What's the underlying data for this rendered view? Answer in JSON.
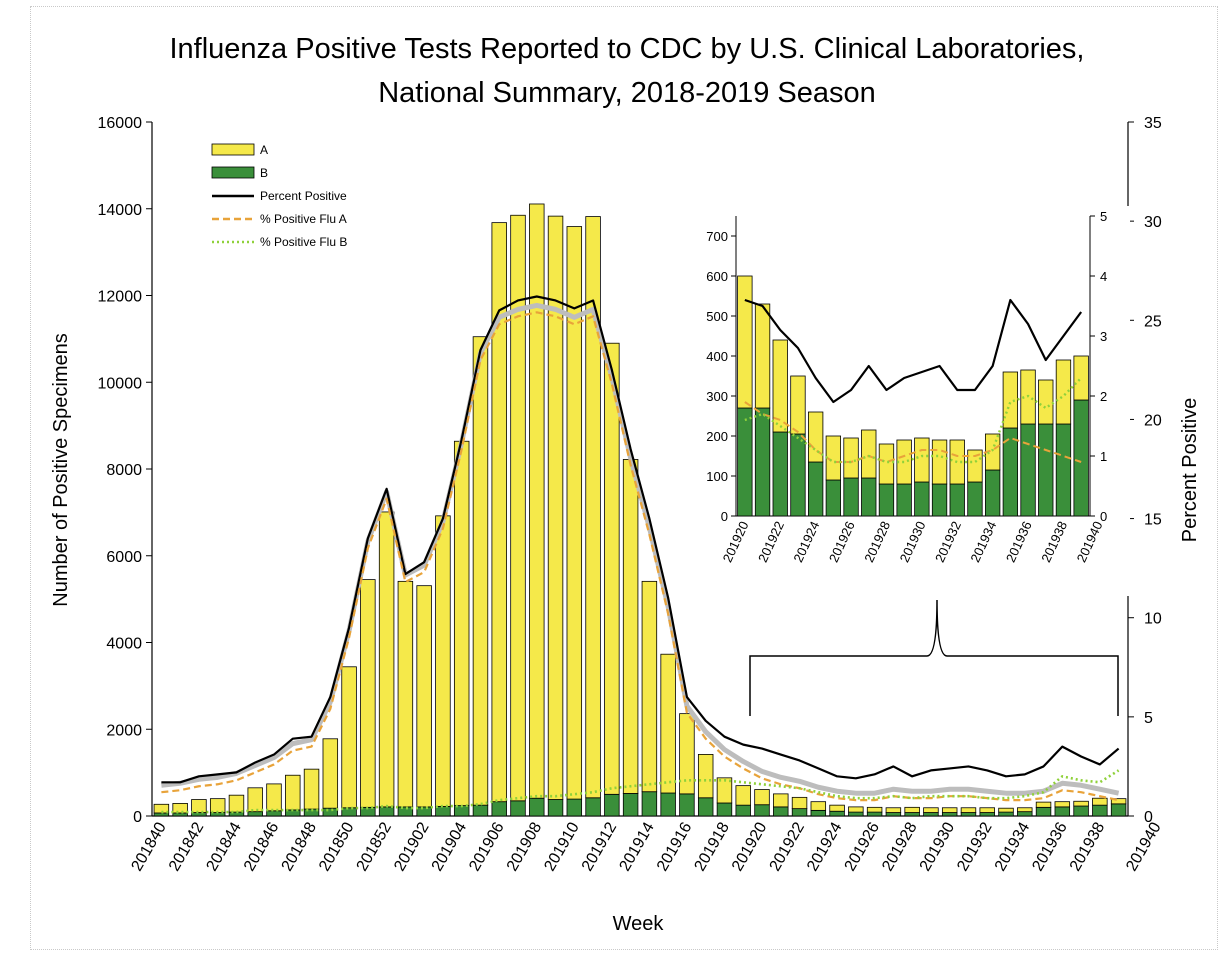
{
  "chart_data": {
    "type": "bar",
    "title_line1": "Influenza Positive Tests Reported to CDC by U.S. Clinical Laboratories,",
    "title_line2": "National Summary, 2018-2019 Season",
    "xlabel": "Week",
    "ylabel": "Number of Positive Specimens",
    "y2label": "Percent Positive",
    "ylim": [
      0,
      16000
    ],
    "y2lim": [
      0,
      35
    ],
    "yticks": [
      "0",
      "2000",
      "4000",
      "6000",
      "8000",
      "10000",
      "12000",
      "14000",
      "16000"
    ],
    "y2ticks": [
      "0",
      "5",
      "10",
      "15",
      "20",
      "25",
      "30",
      "35"
    ],
    "stacked": true,
    "weeks": [
      "201840",
      "201841",
      "201842",
      "201843",
      "201844",
      "201845",
      "201846",
      "201847",
      "201848",
      "201849",
      "201850",
      "201851",
      "201852",
      "201901",
      "201902",
      "201903",
      "201904",
      "201905",
      "201906",
      "201907",
      "201908",
      "201909",
      "201910",
      "201911",
      "201912",
      "201913",
      "201914",
      "201915",
      "201916",
      "201917",
      "201918",
      "201919",
      "201920",
      "201921",
      "201922",
      "201923",
      "201924",
      "201925",
      "201926",
      "201927",
      "201928",
      "201929",
      "201930",
      "201931",
      "201932",
      "201933",
      "201934",
      "201935",
      "201936",
      "201937",
      "201938",
      "201939"
    ],
    "x_tick_labels": [
      "201840",
      "201842",
      "201844",
      "201846",
      "201848",
      "201850",
      "201852",
      "201902",
      "201904",
      "201906",
      "201908",
      "201910",
      "201912",
      "201914",
      "201916",
      "201918",
      "201920",
      "201922",
      "201924",
      "201926",
      "201928",
      "201930",
      "201932",
      "201934",
      "201936",
      "201938",
      "201940"
    ],
    "legend": [
      {
        "label": "A",
        "kind": "bar",
        "color": "#f5e94a"
      },
      {
        "label": "B",
        "kind": "bar",
        "color": "#3a8f3a"
      },
      {
        "label": "Percent Positive",
        "kind": "line",
        "color": "#000000"
      },
      {
        "label": "% Positive Flu A",
        "kind": "dash",
        "color": "#e8a33a"
      },
      {
        "label": "% Positive Flu B",
        "kind": "dot",
        "color": "#8fd13a"
      }
    ],
    "legend_placement": "top-left",
    "series": [
      {
        "name": "A",
        "axis": "left",
        "values": [
          200,
          220,
          300,
          320,
          390,
          550,
          620,
          800,
          920,
          1600,
          3250,
          5250,
          6800,
          5200,
          5100,
          6700,
          8400,
          10800,
          13350,
          13500,
          13700,
          13450,
          13200,
          13400,
          10400,
          7700,
          4850,
          3200,
          1850,
          1000,
          580,
          450,
          350,
          300,
          260,
          200,
          140,
          120,
          110,
          110,
          120,
          110,
          110,
          110,
          110,
          90,
          90,
          120,
          120,
          110,
          160,
          120
        ]
      },
      {
        "name": "B",
        "axis": "left",
        "values": [
          70,
          70,
          80,
          80,
          90,
          100,
          120,
          140,
          160,
          180,
          190,
          200,
          210,
          210,
          210,
          220,
          240,
          250,
          330,
          350,
          410,
          380,
          390,
          420,
          500,
          520,
          560,
          530,
          510,
          420,
          300,
          250,
          260,
          210,
          170,
          130,
          110,
          90,
          90,
          80,
          80,
          80,
          80,
          80,
          80,
          90,
          100,
          200,
          210,
          230,
          250,
          280
        ]
      },
      {
        "name": "Percent Positive",
        "axis": "right",
        "values": [
          1.7,
          1.7,
          2.0,
          2.1,
          2.2,
          2.7,
          3.1,
          3.9,
          4.0,
          6.0,
          9.5,
          14.0,
          16.5,
          12.2,
          12.8,
          15.0,
          19.0,
          23.5,
          25.5,
          26.0,
          26.2,
          26.0,
          25.6,
          26.0,
          22.5,
          18.5,
          15.0,
          11.0,
          6.0,
          4.8,
          4.0,
          3.6,
          3.4,
          3.1,
          2.8,
          2.4,
          2.0,
          1.9,
          2.1,
          2.5,
          2.0,
          2.3,
          2.4,
          2.5,
          2.3,
          2.0,
          2.1,
          2.5,
          3.5,
          3.0,
          2.6,
          3.4
        ]
      },
      {
        "name": "% Positive Flu A",
        "axis": "right",
        "values": [
          1.2,
          1.3,
          1.5,
          1.6,
          1.8,
          2.2,
          2.6,
          3.3,
          3.5,
          5.4,
          9.0,
          13.5,
          16.0,
          11.8,
          12.3,
          14.5,
          18.5,
          23.0,
          24.8,
          25.2,
          25.4,
          25.2,
          24.8,
          25.2,
          21.8,
          17.7,
          14.2,
          10.2,
          5.2,
          3.9,
          3.0,
          2.4,
          1.9,
          1.6,
          1.4,
          1.1,
          0.9,
          0.8,
          0.8,
          1.0,
          0.9,
          0.9,
          1.0,
          1.0,
          0.9,
          0.8,
          0.8,
          0.9,
          1.3,
          1.2,
          1.0,
          0.8
        ]
      },
      {
        "name": "% Positive Flu B",
        "axis": "right",
        "values": [
          0.2,
          0.2,
          0.2,
          0.2,
          0.2,
          0.3,
          0.3,
          0.3,
          0.3,
          0.3,
          0.4,
          0.4,
          0.5,
          0.4,
          0.4,
          0.5,
          0.5,
          0.6,
          0.8,
          0.9,
          1.0,
          1.0,
          1.1,
          1.2,
          1.4,
          1.5,
          1.6,
          1.7,
          1.8,
          1.8,
          1.8,
          1.7,
          1.6,
          1.5,
          1.4,
          1.2,
          1.0,
          0.9,
          0.9,
          1.0,
          0.9,
          1.0,
          1.0,
          1.0,
          0.9,
          0.9,
          1.0,
          1.2,
          2.0,
          1.8,
          1.7,
          2.3
        ]
      }
    ],
    "inset": {
      "weeks": [
        "201920",
        "201921",
        "201922",
        "201923",
        "201924",
        "201925",
        "201926",
        "201927",
        "201928",
        "201929",
        "201930",
        "201931",
        "201932",
        "201933",
        "201934",
        "201935",
        "201936",
        "201937",
        "201938",
        "201939"
      ],
      "x_tick_labels": [
        "201920",
        "201922",
        "201924",
        "201926",
        "201928",
        "201930",
        "201932",
        "201934",
        "201936",
        "201938",
        "201940"
      ],
      "ylim": [
        0,
        750
      ],
      "yticks": [
        "0",
        "100",
        "200",
        "300",
        "400",
        "500",
        "600",
        "700"
      ],
      "y2lim": [
        0,
        5
      ],
      "y2ticks": [
        "0",
        "1",
        "2",
        "3",
        "4",
        "5"
      ],
      "A": [
        330,
        260,
        230,
        145,
        125,
        110,
        100,
        120,
        100,
        110,
        110,
        110,
        110,
        80,
        90,
        140,
        135,
        110,
        160,
        110
      ],
      "B": [
        270,
        270,
        210,
        205,
        135,
        90,
        95,
        95,
        80,
        80,
        85,
        80,
        80,
        85,
        115,
        220,
        230,
        230,
        230,
        290
      ],
      "percent_positive": [
        3.6,
        3.5,
        3.1,
        2.8,
        2.3,
        1.9,
        2.1,
        2.5,
        2.1,
        2.3,
        2.4,
        2.5,
        2.1,
        2.1,
        2.5,
        3.6,
        3.2,
        2.6,
        3.0,
        3.4
      ],
      "pct_flu_a": [
        1.9,
        1.7,
        1.6,
        1.4,
        1.1,
        0.9,
        0.9,
        1.0,
        0.9,
        1.0,
        1.1,
        1.1,
        1.0,
        1.0,
        1.1,
        1.3,
        1.2,
        1.1,
        1.0,
        0.9
      ],
      "pct_flu_b": [
        1.6,
        1.7,
        1.5,
        1.3,
        1.1,
        0.9,
        0.9,
        1.0,
        0.9,
        0.9,
        1.0,
        1.0,
        0.9,
        0.9,
        1.1,
        1.9,
        2.0,
        1.8,
        2.0,
        2.3
      ]
    }
  }
}
